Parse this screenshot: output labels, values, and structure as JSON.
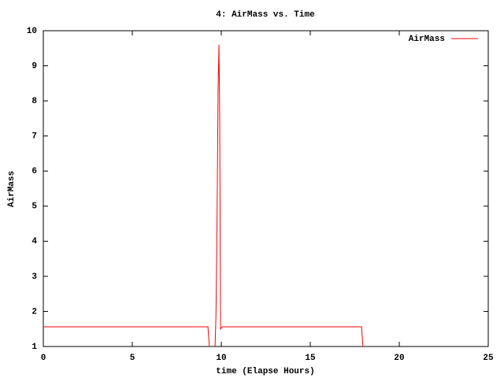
{
  "chart_data": {
    "type": "line",
    "title": "4: AirMass vs. Time",
    "xlabel": "time (Elapse Hours)",
    "ylabel": "AirMass",
    "x": [
      0,
      9.25,
      9.33,
      9.5,
      9.65,
      9.7,
      9.74,
      9.78,
      9.82,
      9.87,
      9.91,
      9.96,
      10.05,
      17.88,
      17.96
    ],
    "series": [
      {
        "name": "AirMass",
        "color": "#ff0000",
        "values": [
          1.56,
          1.56,
          1,
          null,
          1,
          1.85,
          3.5,
          5.7,
          8.3,
          9.6,
          7.6,
          1.5,
          1.56,
          1.56,
          1
        ]
      }
    ],
    "xlim": [
      0,
      25
    ],
    "xticks": [
      0,
      5,
      10,
      15,
      20,
      25
    ],
    "ylim": [
      1,
      10
    ],
    "yticks": [
      1,
      2,
      3,
      4,
      5,
      6,
      7,
      8,
      9,
      10
    ],
    "legend": "top-right"
  }
}
